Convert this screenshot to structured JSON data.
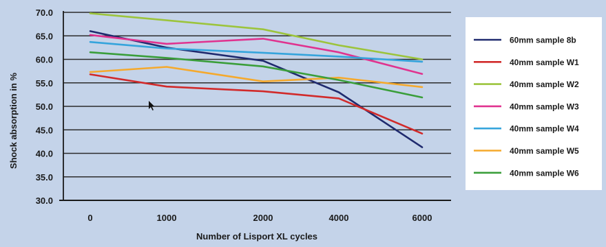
{
  "chart_data": {
    "type": "line",
    "title": "",
    "xlabel": "Number of Lisport XL cycles",
    "ylabel": "Shock absorption in %",
    "x": [
      "0",
      "1000",
      "2000",
      "4000",
      "6000"
    ],
    "y_ticks": [
      "70.0",
      "65.0",
      "60.0",
      "55.0",
      "50.0",
      "45.0",
      "40.0",
      "35.0",
      "30.0"
    ],
    "ylim": [
      30,
      70
    ],
    "grid": "horizontal",
    "legend_position": "right",
    "series": [
      {
        "name": "60mm sample 8b",
        "color": "#1f2a6e",
        "values": [
          66.0,
          62.5,
          59.7,
          53.0,
          41.3
        ]
      },
      {
        "name": "40mm sample W1",
        "color": "#d12a2a",
        "values": [
          56.8,
          54.2,
          53.2,
          51.7,
          44.2
        ]
      },
      {
        "name": "40mm sample W2",
        "color": "#9cc43c",
        "values": [
          69.8,
          68.3,
          66.4,
          63.0,
          60.0
        ]
      },
      {
        "name": "40mm sample W3",
        "color": "#e0338f",
        "values": [
          65.2,
          63.3,
          64.4,
          61.5,
          56.9
        ]
      },
      {
        "name": "40mm sample W4",
        "color": "#35a4dc",
        "values": [
          63.7,
          62.3,
          61.4,
          60.6,
          59.5
        ]
      },
      {
        "name": "40mm sample W5",
        "color": "#f5a92c",
        "values": [
          57.3,
          58.4,
          55.3,
          56.1,
          54.1
        ]
      },
      {
        "name": "40mm sample W6",
        "color": "#3a9e3a",
        "values": [
          61.5,
          60.3,
          58.5,
          55.6,
          51.9
        ]
      }
    ]
  }
}
